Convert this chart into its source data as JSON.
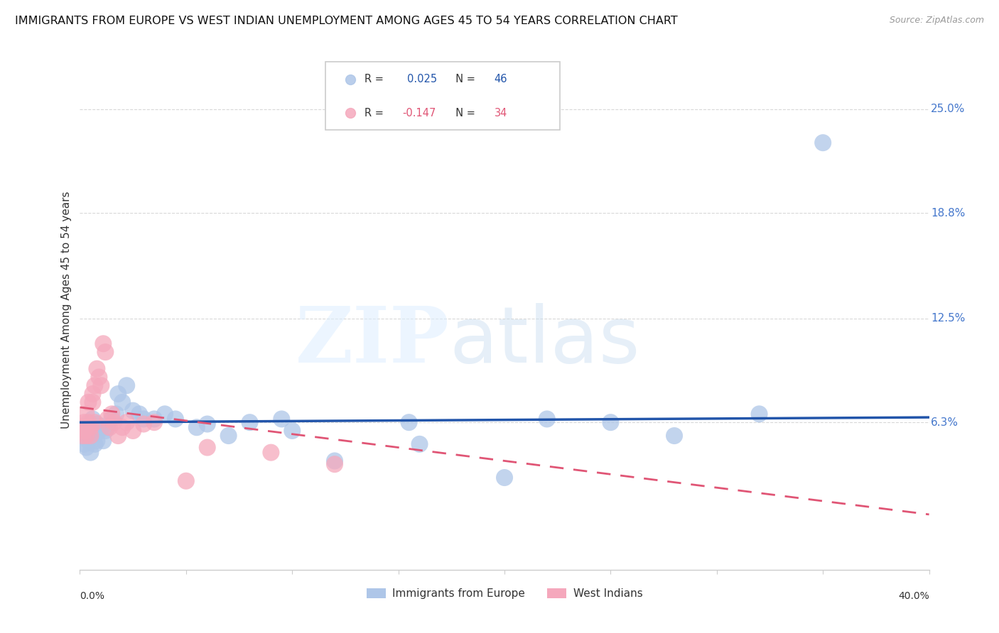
{
  "title": "IMMIGRANTS FROM EUROPE VS WEST INDIAN UNEMPLOYMENT AMONG AGES 45 TO 54 YEARS CORRELATION CHART",
  "source": "Source: ZipAtlas.com",
  "ylabel": "Unemployment Among Ages 45 to 54 years",
  "ytick_labels": [
    "25.0%",
    "18.8%",
    "12.5%",
    "6.3%"
  ],
  "ytick_values": [
    0.25,
    0.188,
    0.125,
    0.063
  ],
  "xlim": [
    0.0,
    0.4
  ],
  "ylim": [
    -0.025,
    0.285
  ],
  "legend_europe_R": "0.025",
  "legend_europe_N": "46",
  "legend_wi_R": "-0.147",
  "legend_wi_N": "34",
  "europe_color": "#aec6e8",
  "wi_color": "#f5a8bc",
  "europe_line_color": "#2255aa",
  "wi_line_color": "#e05575",
  "background_color": "#ffffff",
  "grid_color": "#d8d8d8",
  "europe_line_start_y": 0.063,
  "europe_line_end_y": 0.066,
  "wi_line_start_y": 0.072,
  "wi_line_end_y": 0.008,
  "europe_x": [
    0.001,
    0.002,
    0.002,
    0.003,
    0.003,
    0.004,
    0.004,
    0.005,
    0.005,
    0.006,
    0.006,
    0.007,
    0.007,
    0.008,
    0.008,
    0.009,
    0.01,
    0.011,
    0.012,
    0.013,
    0.015,
    0.017,
    0.018,
    0.02,
    0.022,
    0.025,
    0.028,
    0.03,
    0.035,
    0.04,
    0.045,
    0.055,
    0.06,
    0.07,
    0.08,
    0.095,
    0.1,
    0.12,
    0.155,
    0.16,
    0.2,
    0.22,
    0.25,
    0.28,
    0.32,
    0.35
  ],
  "europe_y": [
    0.055,
    0.06,
    0.05,
    0.058,
    0.048,
    0.06,
    0.052,
    0.055,
    0.045,
    0.058,
    0.065,
    0.055,
    0.05,
    0.062,
    0.052,
    0.058,
    0.06,
    0.052,
    0.058,
    0.06,
    0.065,
    0.068,
    0.08,
    0.075,
    0.085,
    0.07,
    0.068,
    0.065,
    0.065,
    0.068,
    0.065,
    0.06,
    0.062,
    0.055,
    0.063,
    0.065,
    0.058,
    0.04,
    0.063,
    0.05,
    0.03,
    0.065,
    0.063,
    0.055,
    0.068,
    0.23
  ],
  "wi_x": [
    0.001,
    0.001,
    0.002,
    0.002,
    0.003,
    0.003,
    0.003,
    0.004,
    0.004,
    0.005,
    0.005,
    0.006,
    0.006,
    0.007,
    0.007,
    0.008,
    0.009,
    0.01,
    0.011,
    0.012,
    0.013,
    0.014,
    0.015,
    0.016,
    0.018,
    0.02,
    0.022,
    0.025,
    0.03,
    0.035,
    0.05,
    0.06,
    0.09,
    0.12
  ],
  "wi_y": [
    0.06,
    0.055,
    0.063,
    0.058,
    0.068,
    0.06,
    0.055,
    0.063,
    0.075,
    0.06,
    0.055,
    0.075,
    0.08,
    0.085,
    0.063,
    0.095,
    0.09,
    0.085,
    0.11,
    0.105,
    0.065,
    0.06,
    0.068,
    0.063,
    0.055,
    0.06,
    0.063,
    0.058,
    0.062,
    0.063,
    0.028,
    0.048,
    0.045,
    0.038
  ]
}
